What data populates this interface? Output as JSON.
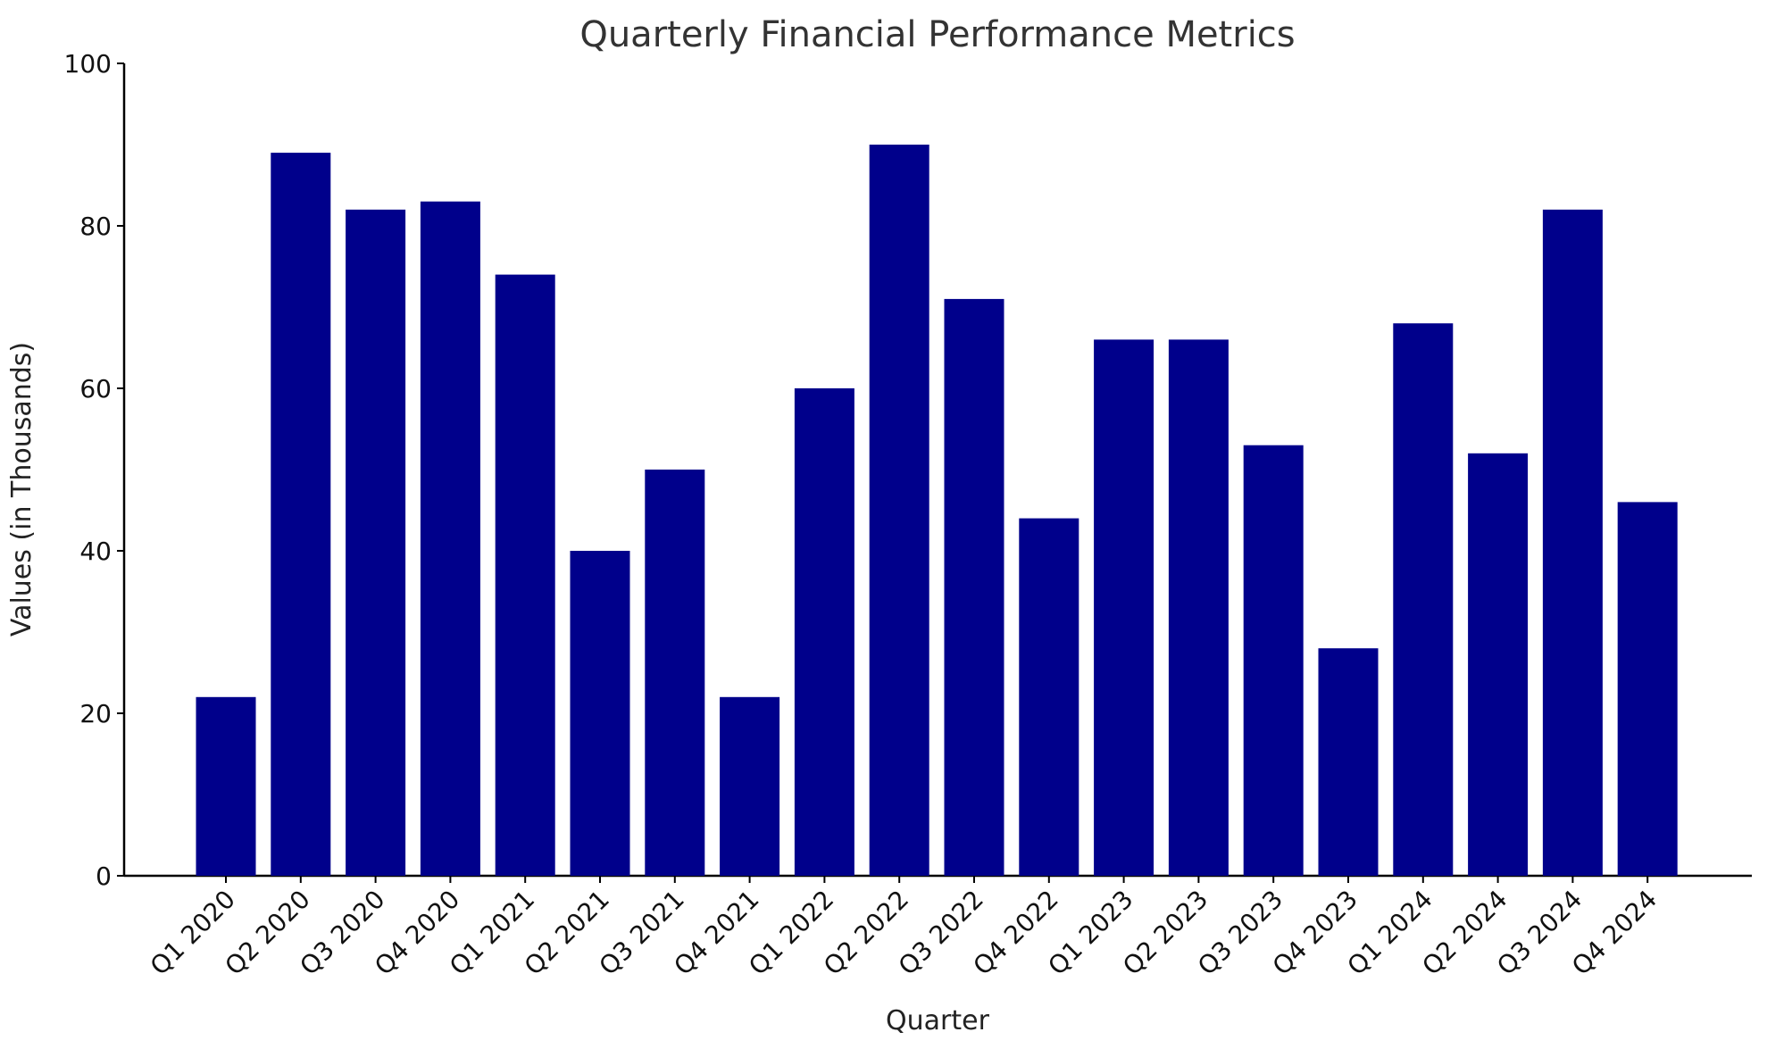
{
  "chart_data": {
    "type": "bar",
    "title": "Quarterly Financial Performance Metrics",
    "xlabel": "Quarter",
    "ylabel": "Values (in Thousands)",
    "categories": [
      "Q1 2020",
      "Q2 2020",
      "Q3 2020",
      "Q4 2020",
      "Q1 2021",
      "Q2 2021",
      "Q3 2021",
      "Q4 2021",
      "Q1 2022",
      "Q2 2022",
      "Q3 2022",
      "Q4 2022",
      "Q1 2023",
      "Q2 2023",
      "Q3 2023",
      "Q4 2023",
      "Q1 2024",
      "Q2 2024",
      "Q3 2024",
      "Q4 2024"
    ],
    "values": [
      22,
      89,
      82,
      83,
      74,
      40,
      50,
      22,
      60,
      90,
      71,
      44,
      66,
      66,
      53,
      28,
      68,
      52,
      82,
      46
    ],
    "ylim": [
      0,
      100
    ],
    "yticks": [
      0,
      20,
      40,
      60,
      80,
      100
    ],
    "grid": false,
    "colors": {
      "bar": "#00008B",
      "axis": "#000000",
      "title": "#333333"
    }
  }
}
